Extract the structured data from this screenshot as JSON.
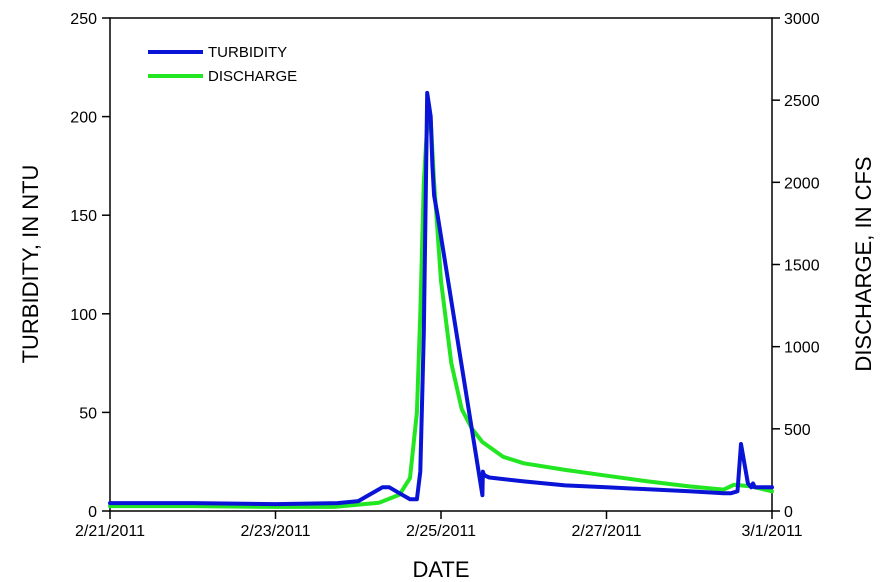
{
  "chart_data": {
    "type": "line",
    "title": "",
    "xlabel": "DATE",
    "ylabel_left": "TURBIDITY, IN NTU",
    "ylabel_right": "DISCHARGE, IN CFS",
    "x_ticks": [
      "2/21/2011",
      "2/23/2011",
      "2/25/2011",
      "2/27/2011",
      "3/1/2011"
    ],
    "xlim": [
      "2011-02-21",
      "2011-03-01"
    ],
    "ylim_left": [
      0,
      250
    ],
    "ylim_right": [
      0,
      3000
    ],
    "y_ticks_left": [
      0,
      50,
      100,
      150,
      200,
      250
    ],
    "y_ticks_right": [
      0,
      500,
      1000,
      1500,
      2000,
      2500,
      3000
    ],
    "grid": false,
    "legend": {
      "position": "top-left"
    },
    "colors": {
      "turbidity": "#0a14d6",
      "discharge": "#22e622"
    },
    "series": [
      {
        "name": "TURBIDITY",
        "axis": "left",
        "x": [
          "2011-02-21 00:00",
          "2011-02-22 00:00",
          "2011-02-23 00:00",
          "2011-02-23 18:00",
          "2011-02-24 00:00",
          "2011-02-24 04:00",
          "2011-02-24 07:00",
          "2011-02-24 09:00",
          "2011-02-24 12:00",
          "2011-02-24 15:00",
          "2011-02-24 17:00",
          "2011-02-24 18:00",
          "2011-02-24 19:00",
          "2011-02-24 20:00",
          "2011-02-24 21:00",
          "2011-02-24 21:30",
          "2011-02-24 22:00",
          "2011-02-24 23:00",
          "2011-02-25 12:00",
          "2011-02-25 12:10",
          "2011-02-25 12:20",
          "2011-02-25 12:40",
          "2011-02-25 14:00",
          "2011-02-26 00:00",
          "2011-02-26 12:00",
          "2011-02-27 00:00",
          "2011-02-27 12:00",
          "2011-02-28 00:00",
          "2011-02-28 10:00",
          "2011-02-28 12:00",
          "2011-02-28 14:00",
          "2011-02-28 15:00",
          "2011-02-28 17:00",
          "2011-02-28 18:00",
          "2011-02-28 18:30",
          "2011-02-28 19:00",
          "2011-03-01 00:00"
        ],
        "values": [
          4,
          4,
          3.5,
          4,
          5,
          9,
          12,
          12,
          9,
          6,
          6,
          20,
          90,
          212,
          200,
          175,
          160,
          150,
          8,
          20,
          19,
          18,
          17,
          15,
          13,
          12,
          11,
          10,
          9,
          9,
          10,
          34,
          14,
          12,
          14,
          12,
          12
        ]
      },
      {
        "name": "DISCHARGE",
        "axis": "right",
        "x": [
          "2011-02-21 00:00",
          "2011-02-22 00:00",
          "2011-02-23 00:00",
          "2011-02-23 17:00",
          "2011-02-24 06:00",
          "2011-02-24 12:00",
          "2011-02-24 15:00",
          "2011-02-24 17:00",
          "2011-02-24 18:00",
          "2011-02-24 19:00",
          "2011-02-24 20:00",
          "2011-02-24 21:00",
          "2011-02-24 22:00",
          "2011-02-25 00:00",
          "2011-02-25 03:00",
          "2011-02-25 06:00",
          "2011-02-25 09:00",
          "2011-02-25 12:00",
          "2011-02-25 18:00",
          "2011-02-26 00:00",
          "2011-02-26 12:00",
          "2011-02-27 00:00",
          "2011-02-27 12:00",
          "2011-02-28 00:00",
          "2011-02-28 10:00",
          "2011-02-28 13:00",
          "2011-02-28 18:00",
          "2011-03-01 00:00"
        ],
        "values": [
          30,
          30,
          25,
          25,
          50,
          100,
          200,
          600,
          1200,
          2000,
          2350,
          2380,
          2000,
          1400,
          900,
          620,
          500,
          420,
          330,
          290,
          250,
          215,
          180,
          150,
          130,
          160,
          150,
          120
        ]
      }
    ]
  }
}
